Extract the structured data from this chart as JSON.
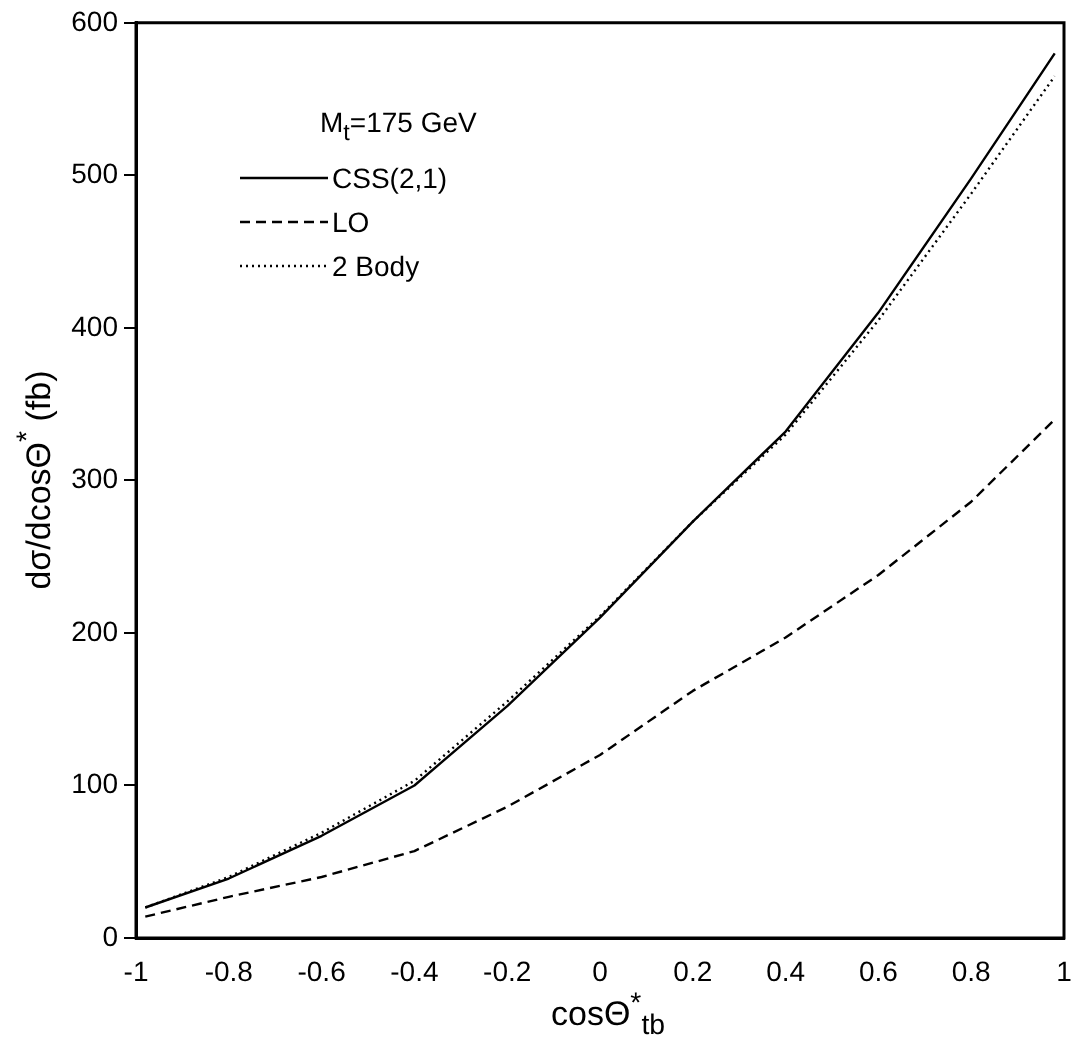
{
  "chart_data": {
    "type": "line",
    "xlabel": "cosΘ$^{*}$$_{tb}$",
    "ylabel": "dσ/dcosΘ$^{*}$ (fb)",
    "legend_title": "M$_{t}$=175 GeV",
    "legend": "top left",
    "grid": false,
    "xlim": [
      -1,
      1
    ],
    "xticks": [
      -1,
      -0.8,
      -0.6,
      -0.4,
      -0.2,
      0,
      0.2,
      0.4,
      0.6,
      0.8,
      1
    ],
    "ylim": [
      0,
      600
    ],
    "yticks": [
      0,
      100,
      200,
      300,
      400,
      500,
      600
    ],
    "x": [
      -0.98,
      -0.8,
      -0.6,
      -0.4,
      -0.2,
      0,
      0.2,
      0.4,
      0.6,
      0.8,
      0.98
    ],
    "series": [
      {
        "name": "CSS(2,1)",
        "color": "#000000",
        "line_style": "solid",
        "values": [
          20,
          39,
          67,
          100,
          152,
          210,
          273,
          332,
          410,
          498,
          580
        ]
      },
      {
        "name": "LO",
        "color": "#000000",
        "line_style": "dashed",
        "values": [
          14,
          27,
          40,
          57,
          86,
          120,
          162,
          197,
          238,
          286,
          340
        ]
      },
      {
        "name": "2 Body",
        "color": "#000000",
        "line_style": "dotted",
        "values": [
          20,
          40,
          69,
          103,
          155,
          211,
          273,
          330,
          405,
          488,
          565
        ]
      }
    ]
  }
}
